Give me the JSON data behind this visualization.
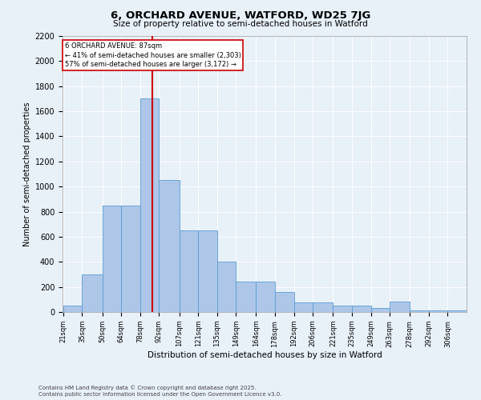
{
  "title_line1": "6, ORCHARD AVENUE, WATFORD, WD25 7JG",
  "title_line2": "Size of property relative to semi-detached houses in Watford",
  "xlabel": "Distribution of semi-detached houses by size in Watford",
  "ylabel": "Number of semi-detached properties",
  "property_size": 87,
  "property_label": "6 ORCHARD AVENUE: 87sqm",
  "pct_smaller": 41,
  "count_smaller": 2303,
  "pct_larger": 57,
  "count_larger": 3172,
  "footnote1": "Contains HM Land Registry data © Crown copyright and database right 2025.",
  "footnote2": "Contains public sector information licensed under the Open Government Licence v3.0.",
  "bin_labels": [
    "21sqm",
    "35sqm",
    "50sqm",
    "64sqm",
    "78sqm",
    "92sqm",
    "107sqm",
    "121sqm",
    "135sqm",
    "149sqm",
    "164sqm",
    "178sqm",
    "192sqm",
    "206sqm",
    "221sqm",
    "235sqm",
    "249sqm",
    "263sqm",
    "278sqm",
    "292sqm",
    "306sqm"
  ],
  "bin_edges": [
    21,
    35,
    50,
    64,
    78,
    92,
    107,
    121,
    135,
    149,
    164,
    178,
    192,
    206,
    221,
    235,
    249,
    263,
    278,
    292,
    306
  ],
  "bar_heights": [
    50,
    300,
    850,
    850,
    1700,
    1050,
    650,
    650,
    400,
    240,
    240,
    160,
    75,
    75,
    50,
    50,
    30,
    80,
    10,
    10,
    10
  ],
  "bar_color": "#aec6e8",
  "bar_edge_color": "#5a9fd4",
  "vline_color": "#cc0000",
  "box_edge_color": "#cc0000",
  "background_color": "#e8f0f8",
  "ylim": [
    0,
    2200
  ],
  "yticks": [
    0,
    200,
    400,
    600,
    800,
    1000,
    1200,
    1400,
    1600,
    1800,
    2000,
    2200
  ]
}
